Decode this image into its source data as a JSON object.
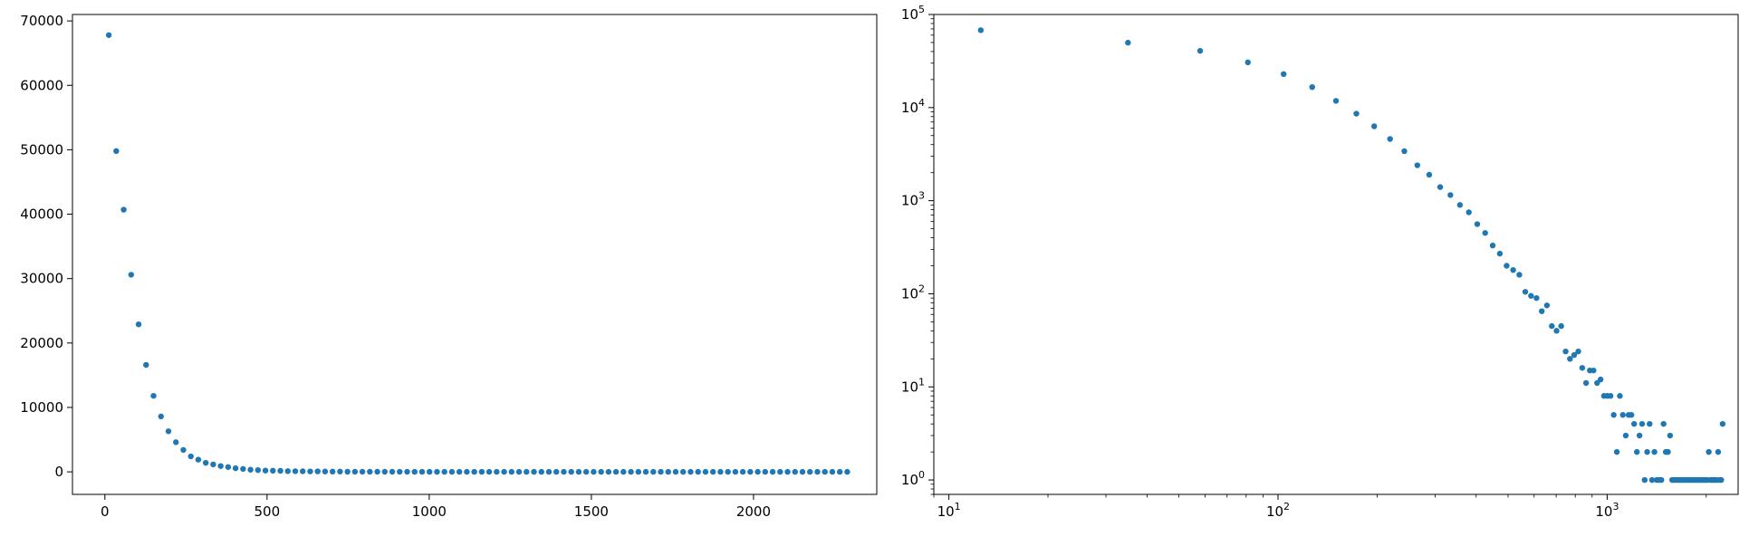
{
  "chart_data": [
    {
      "type": "scatter",
      "x_scale": "linear",
      "y_scale": "linear",
      "xlim": [
        -100,
        2380
      ],
      "ylim": [
        -3500,
        71000
      ],
      "x_ticks": [
        0,
        500,
        1000,
        1500,
        2000
      ],
      "x_tick_labels": [
        "0",
        "500",
        "1000",
        "1500",
        "2000"
      ],
      "y_ticks": [
        0,
        10000,
        20000,
        30000,
        40000,
        50000,
        60000,
        70000
      ],
      "y_tick_labels": [
        "0",
        "10000",
        "20000",
        "30000",
        "40000",
        "50000",
        "60000",
        "70000"
      ],
      "grid": false,
      "legend": "none",
      "color": "#1f77b4",
      "series": [
        {
          "points": [
            [
              12,
              67800
            ],
            [
              35,
              49800
            ],
            [
              58,
              40700
            ],
            [
              81,
              30600
            ],
            [
              104,
              22900
            ],
            [
              127,
              16600
            ],
            [
              150,
              11800
            ],
            [
              173,
              8600
            ],
            [
              196,
              6300
            ],
            [
              219,
              4600
            ],
            [
              242,
              3400
            ],
            [
              265,
              2400
            ],
            [
              288,
              1900
            ],
            [
              311,
              1400
            ],
            [
              334,
              1150
            ],
            [
              357,
              900
            ],
            [
              380,
              750
            ],
            [
              403,
              560
            ],
            [
              426,
              450
            ],
            [
              449,
              330
            ],
            [
              472,
              270
            ],
            [
              495,
              200
            ],
            [
              518,
              180
            ],
            [
              541,
              160
            ],
            [
              564,
              110
            ],
            [
              587,
              100
            ],
            [
              610,
              90
            ],
            [
              633,
              65
            ],
            [
              656,
              75
            ],
            [
              679,
              48
            ],
            [
              702,
              40
            ],
            [
              725,
              45
            ],
            [
              748,
              24
            ],
            [
              771,
              20
            ],
            [
              794,
              20
            ],
            [
              817,
              16
            ],
            [
              840,
              13
            ],
            [
              863,
              15
            ],
            [
              886,
              13
            ],
            [
              909,
              9
            ],
            [
              932,
              8
            ],
            [
              955,
              5
            ],
            [
              978,
              5
            ],
            [
              1001,
              5
            ],
            [
              1024,
              5
            ],
            [
              1047,
              3
            ],
            [
              1070,
              2
            ],
            [
              1093,
              2
            ],
            [
              1116,
              3
            ],
            [
              1139,
              4
            ],
            [
              1162,
              4
            ],
            [
              1185,
              2
            ],
            [
              1208,
              3
            ],
            [
              1231,
              1
            ],
            [
              1254,
              2
            ],
            [
              1277,
              1
            ],
            [
              1300,
              1
            ],
            [
              1323,
              4
            ],
            [
              1346,
              1
            ],
            [
              1369,
              2
            ],
            [
              1392,
              2
            ],
            [
              1415,
              1
            ],
            [
              1438,
              1
            ],
            [
              1461,
              1
            ],
            [
              1484,
              1
            ],
            [
              1507,
              2
            ],
            [
              1530,
              1
            ],
            [
              1553,
              1
            ],
            [
              1576,
              1
            ],
            [
              1599,
              1
            ],
            [
              1622,
              1
            ],
            [
              1645,
              1
            ],
            [
              1668,
              1
            ],
            [
              1691,
              1
            ],
            [
              1714,
              1
            ],
            [
              1737,
              1
            ],
            [
              1760,
              1
            ],
            [
              1783,
              1
            ],
            [
              1806,
              1
            ],
            [
              1829,
              1
            ],
            [
              1852,
              1
            ],
            [
              1875,
              1
            ],
            [
              1898,
              1
            ],
            [
              1921,
              1
            ],
            [
              1944,
              1
            ],
            [
              1967,
              1
            ],
            [
              1990,
              1
            ],
            [
              2013,
              1
            ],
            [
              2036,
              1
            ],
            [
              2059,
              2
            ],
            [
              2082,
              1
            ],
            [
              2105,
              1
            ],
            [
              2128,
              1
            ],
            [
              2151,
              1
            ],
            [
              2174,
              1
            ],
            [
              2197,
              1
            ],
            [
              2220,
              1
            ],
            [
              2243,
              1
            ],
            [
              2266,
              1
            ],
            [
              2289,
              1
            ]
          ]
        }
      ]
    },
    {
      "type": "scatter",
      "x_scale": "log",
      "y_scale": "log",
      "xlim": [
        9.0,
        2500
      ],
      "ylim": [
        0.7,
        100000
      ],
      "x_ticks": [
        10,
        100,
        1000
      ],
      "x_tick_labels": [
        [
          "10",
          "1"
        ],
        [
          "10",
          "2"
        ],
        [
          "10",
          "3"
        ]
      ],
      "y_ticks": [
        1,
        10,
        100,
        1000,
        10000,
        100000
      ],
      "y_tick_labels": [
        [
          "10",
          "0"
        ],
        [
          "10",
          "1"
        ],
        [
          "10",
          "2"
        ],
        [
          "10",
          "3"
        ],
        [
          "10",
          "4"
        ],
        [
          "10",
          "5"
        ]
      ],
      "grid": false,
      "legend": "none",
      "color": "#1f77b4",
      "series": [
        {
          "points": [
            [
              12.5,
              67800
            ],
            [
              35,
              49800
            ],
            [
              58,
              40700
            ],
            [
              81,
              30600
            ],
            [
              104,
              22900
            ],
            [
              127,
              16600
            ],
            [
              150,
              11800
            ],
            [
              173,
              8600
            ],
            [
              196,
              6300
            ],
            [
              219,
              4600
            ],
            [
              242,
              3400
            ],
            [
              265,
              2400
            ],
            [
              288,
              1900
            ],
            [
              311,
              1400
            ],
            [
              334,
              1150
            ],
            [
              357,
              900
            ],
            [
              380,
              750
            ],
            [
              403,
              560
            ],
            [
              426,
              450
            ],
            [
              449,
              330
            ],
            [
              472,
              270
            ],
            [
              495,
              200
            ],
            [
              518,
              180
            ],
            [
              541,
              160
            ],
            [
              564,
              105
            ],
            [
              587,
              95
            ],
            [
              610,
              90
            ],
            [
              633,
              65
            ],
            [
              656,
              75
            ],
            [
              679,
              45
            ],
            [
              702,
              40
            ],
            [
              725,
              45
            ],
            [
              748,
              24
            ],
            [
              771,
              20
            ],
            [
              794,
              22
            ],
            [
              817,
              24
            ],
            [
              840,
              16
            ],
            [
              863,
              11
            ],
            [
              886,
              15
            ],
            [
              909,
              15
            ],
            [
              932,
              11
            ],
            [
              955,
              12
            ],
            [
              978,
              8
            ],
            [
              1001,
              8
            ],
            [
              1024,
              8
            ],
            [
              1047,
              5
            ],
            [
              1070,
              2
            ],
            [
              1093,
              8
            ],
            [
              1116,
              5
            ],
            [
              1139,
              3
            ],
            [
              1162,
              5
            ],
            [
              1185,
              5
            ],
            [
              1208,
              4
            ],
            [
              1231,
              2
            ],
            [
              1254,
              3
            ],
            [
              1277,
              4
            ],
            [
              1300,
              1
            ],
            [
              1323,
              2
            ],
            [
              1346,
              4
            ],
            [
              1369,
              1
            ],
            [
              1392,
              2
            ],
            [
              1415,
              1
            ],
            [
              1438,
              1
            ],
            [
              1461,
              1
            ],
            [
              1484,
              4
            ],
            [
              1507,
              2
            ],
            [
              1530,
              2
            ],
            [
              1553,
              3
            ],
            [
              1576,
              1
            ],
            [
              1599,
              1
            ],
            [
              1622,
              1
            ],
            [
              1645,
              1
            ],
            [
              1668,
              1
            ],
            [
              1691,
              1
            ],
            [
              1714,
              1
            ],
            [
              1737,
              1
            ],
            [
              1760,
              1
            ],
            [
              1783,
              1
            ],
            [
              1806,
              1
            ],
            [
              1829,
              1
            ],
            [
              1852,
              1
            ],
            [
              1875,
              1
            ],
            [
              1898,
              1
            ],
            [
              1921,
              1
            ],
            [
              1944,
              1
            ],
            [
              1967,
              1
            ],
            [
              1990,
              1
            ],
            [
              2013,
              1
            ],
            [
              2036,
              2
            ],
            [
              2059,
              1
            ],
            [
              2082,
              1
            ],
            [
              2105,
              1
            ],
            [
              2128,
              1
            ],
            [
              2151,
              1
            ],
            [
              2174,
              2
            ],
            [
              2197,
              1
            ],
            [
              2220,
              1
            ],
            [
              2243,
              4
            ]
          ]
        }
      ]
    }
  ]
}
